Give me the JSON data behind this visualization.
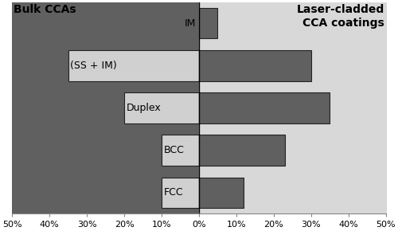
{
  "categories": [
    "IM",
    "(SS + IM)",
    "Duplex",
    "BCC",
    "FCC"
  ],
  "bulk_values": [
    0,
    35,
    20,
    10,
    10
  ],
  "laser_values": [
    5,
    30,
    35,
    23,
    12
  ],
  "xlim": 50,
  "x_tick_vals": [
    -50,
    -40,
    -30,
    -20,
    -10,
    0,
    10,
    20,
    30,
    40,
    50
  ],
  "x_tick_labels": [
    "50%",
    "40%",
    "30%",
    "20%",
    "10%",
    "0%",
    "10%",
    "20%",
    "30%",
    "40%",
    "50%"
  ],
  "left_label": "Bulk CCAs",
  "right_label": "Laser-cladded\nCCA coatings",
  "bg_left_color": "#606060",
  "bg_right_color": "#d8d8d8",
  "bar_left_color": "#d0d0d0",
  "bar_right_color": "#606060",
  "bar_edge_color": "#222222",
  "bar_height": 0.72,
  "label_fontsize": 9,
  "title_fontsize": 10,
  "tick_fontsize": 8
}
